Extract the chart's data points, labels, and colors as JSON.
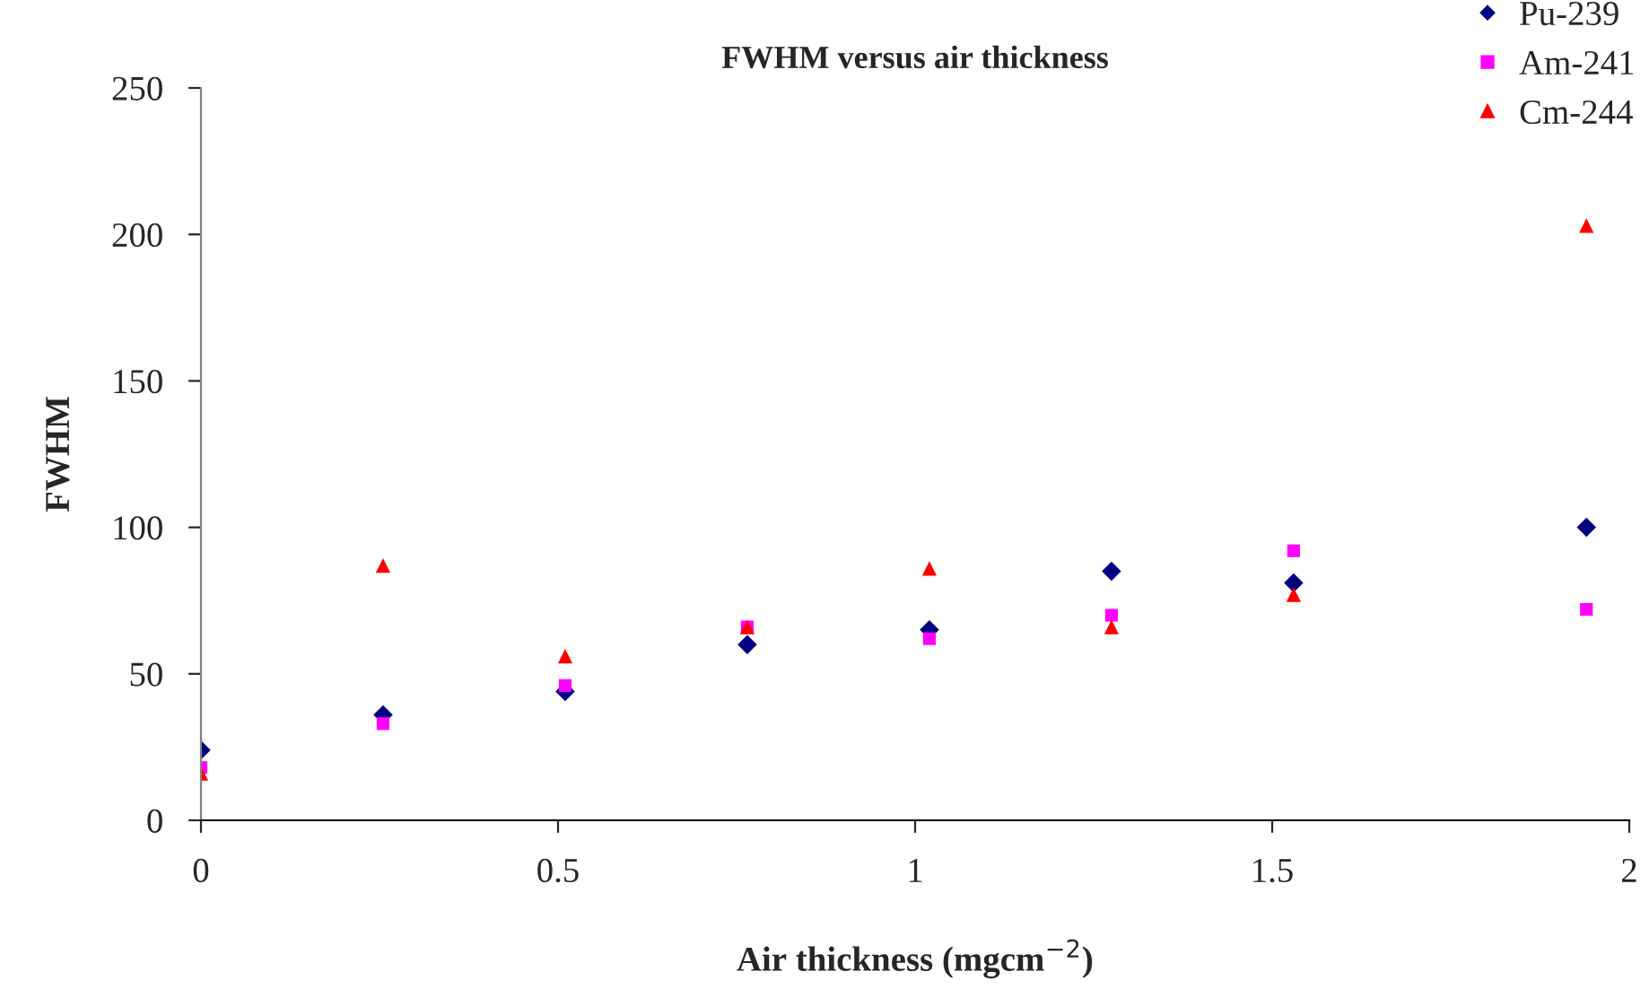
{
  "chart_data": {
    "type": "scatter",
    "title": "FWHM versus air thickness",
    "xlabel": "Air thickness (mgcm$^{−2}$)",
    "ylabel": "FWHM",
    "x": [
      0,
      0.255,
      0.51,
      0.765,
      1.02,
      1.275,
      1.53,
      1.94
    ],
    "series": [
      {
        "name": "Pu-239",
        "color": "#000080",
        "marker": "diamond",
        "values": [
          24,
          36,
          44,
          60,
          65,
          85,
          81,
          100
        ]
      },
      {
        "name": "Am-241",
        "color": "#ff00ff",
        "marker": "square",
        "values": [
          18,
          33,
          46,
          66,
          62,
          70,
          92,
          72
        ]
      },
      {
        "name": "Cm-244",
        "color": "#ff0000",
        "marker": "triangle",
        "values": [
          16,
          87,
          56,
          66,
          86,
          66,
          77,
          203
        ]
      }
    ],
    "xlim": [
      0,
      2
    ],
    "xticks": [
      0,
      0.5,
      1,
      1.5,
      2
    ],
    "ylim": [
      0,
      250
    ],
    "yticks": [
      0,
      50,
      100,
      150,
      200,
      250
    ],
    "grid": false,
    "legend": "top right"
  }
}
